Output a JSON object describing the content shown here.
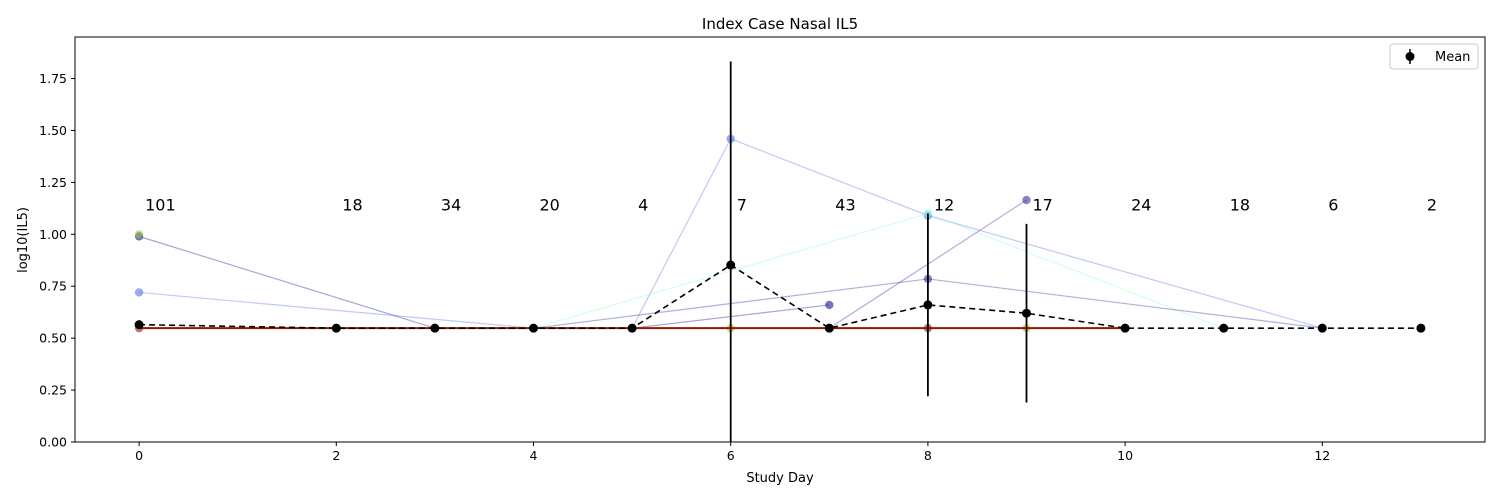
{
  "chart_data": {
    "type": "line",
    "title": "Index Case Nasal IL5",
    "xlabel": "Study Day",
    "ylabel": "log10(IL5)",
    "xlim": [
      -0.65,
      13.65
    ],
    "ylim": [
      0.0,
      1.95
    ],
    "xticks": [
      0,
      2,
      4,
      6,
      8,
      10,
      12
    ],
    "yticks": [
      0.0,
      0.25,
      0.5,
      0.75,
      1.0,
      1.25,
      1.5,
      1.75
    ],
    "grid": false,
    "legend": {
      "placement": "top-right",
      "entries": [
        "Mean"
      ]
    },
    "mean_series": {
      "name": "Mean",
      "color": "#000000",
      "x": [
        0,
        2,
        3,
        4,
        5,
        6,
        7,
        8,
        9,
        10,
        11,
        12,
        13
      ],
      "y": [
        0.565,
        0.548,
        0.548,
        0.548,
        0.548,
        0.852,
        0.548,
        0.66,
        0.62,
        0.548,
        0.548,
        0.548,
        0.548
      ],
      "error": [
        0,
        0,
        0,
        0,
        0,
        0.98,
        0,
        0.44,
        0.43,
        0,
        0,
        0,
        0
      ]
    },
    "counts": [
      {
        "x": 0,
        "label": "101"
      },
      {
        "x": 2,
        "label": "18"
      },
      {
        "x": 3,
        "label": "34"
      },
      {
        "x": 4,
        "label": "20"
      },
      {
        "x": 5,
        "label": "4"
      },
      {
        "x": 6,
        "label": "7"
      },
      {
        "x": 7,
        "label": "43"
      },
      {
        "x": 8,
        "label": "12"
      },
      {
        "x": 9,
        "label": "17"
      },
      {
        "x": 10,
        "label": "24"
      },
      {
        "x": 11,
        "label": "18"
      },
      {
        "x": 12,
        "label": "6"
      },
      {
        "x": 13,
        "label": "2"
      }
    ],
    "count_label_y": 1.13,
    "subjects": [
      {
        "color": "#00008b",
        "x": [
          0,
          3,
          5,
          7
        ],
        "y": [
          0.99,
          0.548,
          0.548,
          0.66
        ]
      },
      {
        "color": "#4169e1",
        "x": [
          0,
          4
        ],
        "y": [
          0.72,
          0.548
        ]
      },
      {
        "color": "#4169e1",
        "x": [
          5,
          6,
          8,
          12
        ],
        "y": [
          0.548,
          1.46,
          1.09,
          0.548
        ]
      },
      {
        "color": "#7fffd4",
        "x": [
          4,
          8,
          11
        ],
        "y": [
          0.548,
          1.1,
          0.548
        ]
      },
      {
        "color": "#1e1e96",
        "x": [
          7,
          9
        ],
        "y": [
          0.548,
          1.165
        ]
      },
      {
        "color": "#1e1e96",
        "x": [
          4,
          8,
          12
        ],
        "y": [
          0.548,
          0.785,
          0.548
        ]
      },
      {
        "color": "#9acd32",
        "x": [
          0
        ],
        "y": [
          1.0
        ]
      },
      {
        "color": "#daa520",
        "x": [
          6,
          9
        ],
        "y": [
          0.548,
          0.548
        ]
      },
      {
        "color": "#8b0000",
        "x": [
          0,
          7,
          8,
          10
        ],
        "y": [
          0.548,
          0.548,
          0.548,
          0.548
        ]
      }
    ],
    "baseline": {
      "y": 0.548,
      "x": [
        0,
        10
      ],
      "color": "#8b1a00"
    }
  }
}
